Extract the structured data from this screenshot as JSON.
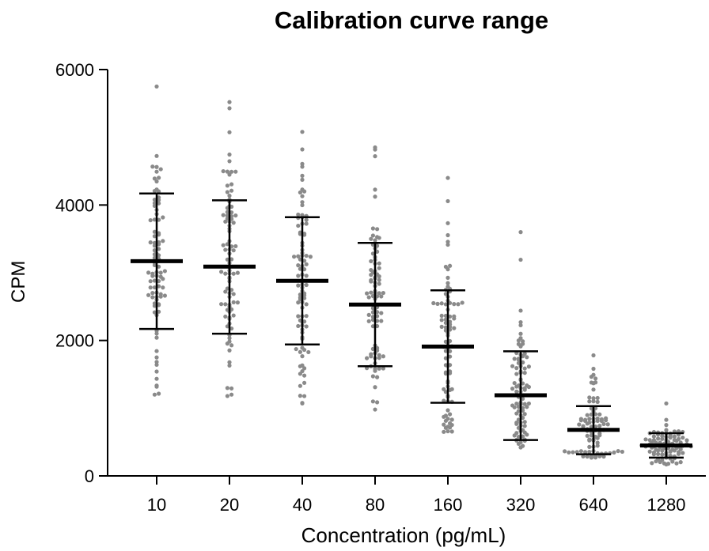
{
  "chart_data": {
    "type": "scatter",
    "title": "Calibration curve range",
    "xlabel": "Concentration (pg/mL)",
    "ylabel": "CPM",
    "categories": [
      "10",
      "20",
      "40",
      "80",
      "160",
      "320",
      "640",
      "1280"
    ],
    "ylim": [
      0,
      6000
    ],
    "yticks": [
      0,
      2000,
      4000,
      6000
    ],
    "point_color": "#8a8a8a",
    "bar_color": "#000000",
    "groups": [
      {
        "category": "10",
        "mean": 3170,
        "sd_low": 2170,
        "sd_high": 4170,
        "min": 1200,
        "max": 5750
      },
      {
        "category": "20",
        "mean": 3090,
        "sd_low": 2100,
        "sd_high": 4070,
        "min": 1180,
        "max": 5520
      },
      {
        "category": "40",
        "mean": 2880,
        "sd_low": 1940,
        "sd_high": 3820,
        "min": 1070,
        "max": 5080
      },
      {
        "category": "80",
        "mean": 2530,
        "sd_low": 1620,
        "sd_high": 3440,
        "min": 980,
        "max": 4850
      },
      {
        "category": "160",
        "mean": 1910,
        "sd_low": 1080,
        "sd_high": 2740,
        "min": 650,
        "max": 4400
      },
      {
        "category": "320",
        "mean": 1190,
        "sd_low": 530,
        "sd_high": 1840,
        "min": 420,
        "max": 3600
      },
      {
        "category": "640",
        "mean": 680,
        "sd_low": 320,
        "sd_high": 1030,
        "min": 270,
        "max": 1780
      },
      {
        "category": "1280",
        "mean": 450,
        "sd_low": 270,
        "sd_high": 630,
        "min": 170,
        "max": 1070
      }
    ]
  }
}
